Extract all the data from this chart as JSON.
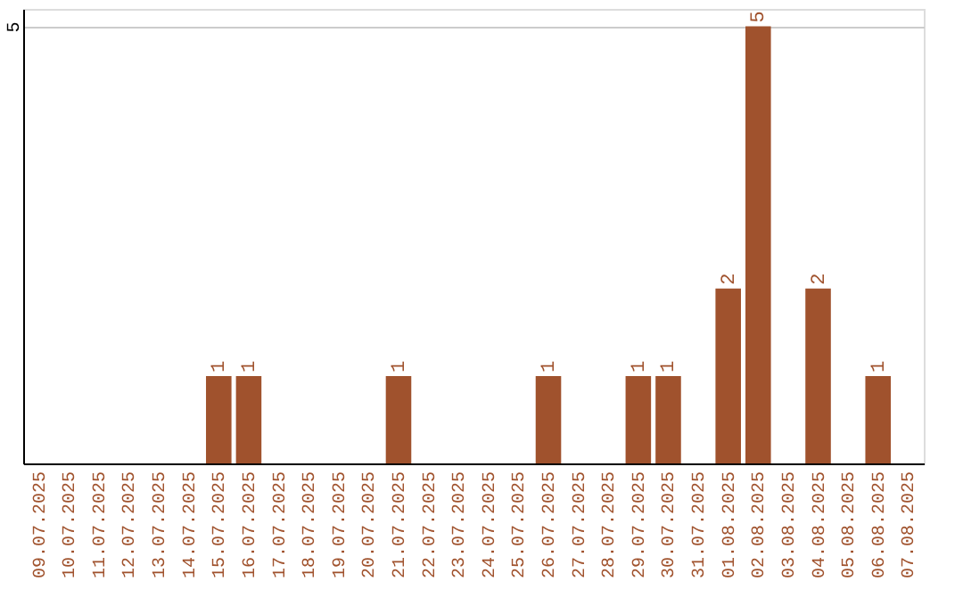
{
  "chart_data": {
    "type": "bar",
    "categories": [
      "09.07.2025",
      "10.07.2025",
      "11.07.2025",
      "12.07.2025",
      "13.07.2025",
      "14.07.2025",
      "15.07.2025",
      "16.07.2025",
      "17.07.2025",
      "18.07.2025",
      "19.07.2025",
      "20.07.2025",
      "21.07.2025",
      "22.07.2025",
      "23.07.2025",
      "24.07.2025",
      "25.07.2025",
      "26.07.2025",
      "27.07.2025",
      "28.07.2025",
      "29.07.2025",
      "30.07.2025",
      "31.07.2025",
      "01.08.2025",
      "02.08.2025",
      "03.08.2025",
      "04.08.2025",
      "05.08.2025",
      "06.08.2025",
      "07.08.2025"
    ],
    "values": [
      0,
      0,
      0,
      0,
      0,
      0,
      1,
      1,
      0,
      0,
      0,
      0,
      1,
      0,
      0,
      0,
      0,
      1,
      0,
      0,
      1,
      1,
      0,
      2,
      5,
      0,
      2,
      0,
      1,
      0
    ],
    "value_labels": [
      null,
      null,
      null,
      null,
      null,
      null,
      "1",
      "1",
      null,
      null,
      null,
      null,
      "1",
      null,
      null,
      null,
      null,
      "1",
      null,
      null,
      "1",
      "1",
      null,
      "2",
      "5",
      null,
      "2",
      null,
      "1",
      null
    ],
    "color": "#a0522d",
    "ylim": [
      0,
      5.2
    ],
    "yticks": [
      5
    ],
    "grid": "y"
  }
}
